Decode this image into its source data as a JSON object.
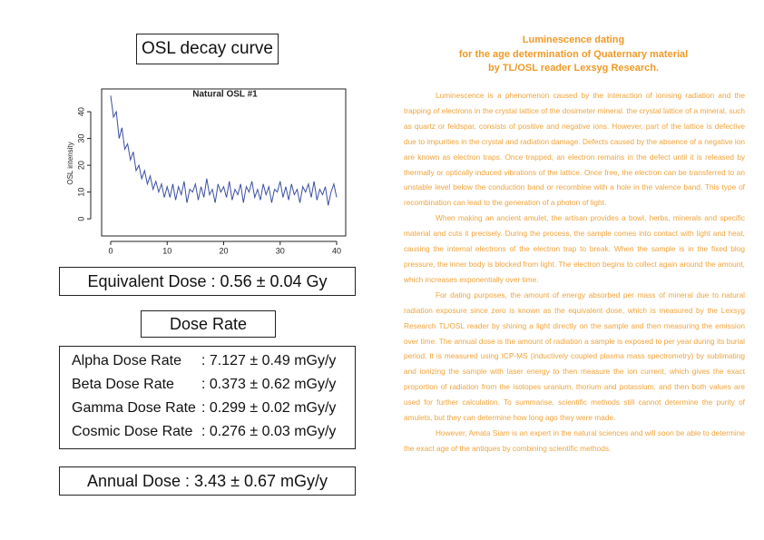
{
  "header": {
    "title": "OSL decay curve"
  },
  "chart": {
    "type": "line",
    "title": "Natural OSL #1",
    "y_label": "OSL intensity",
    "color": "#3b4fa0",
    "xlim": [
      -1.6,
      41.6
    ],
    "ylim": [
      -6.4,
      48.5
    ],
    "xticks": [
      0,
      10,
      20,
      30,
      40
    ],
    "yticks": [
      0,
      10,
      20,
      30,
      40
    ],
    "x": [
      0,
      0.5,
      1,
      1.5,
      2,
      2.5,
      3,
      3.5,
      4,
      4.5,
      5,
      5.5,
      6,
      6.5,
      7,
      7.5,
      8,
      8.5,
      9,
      9.5,
      10,
      10.5,
      11,
      11.5,
      12,
      12.5,
      13,
      13.5,
      14,
      14.5,
      15,
      15.5,
      16,
      16.5,
      17,
      17.5,
      18,
      18.5,
      19,
      19.5,
      20,
      20.5,
      21,
      21.5,
      22,
      22.5,
      23,
      23.5,
      24,
      24.5,
      25,
      25.5,
      26,
      26.5,
      27,
      27.5,
      28,
      28.5,
      29,
      29.5,
      30,
      30.5,
      31,
      31.5,
      32,
      32.5,
      33,
      33.5,
      34,
      34.5,
      35,
      35.5,
      36,
      36.5,
      37,
      37.5,
      38,
      38.5,
      39,
      39.5,
      40
    ],
    "values": [
      46,
      38,
      40,
      30,
      34,
      26,
      28,
      22,
      25,
      18,
      20,
      15,
      18,
      13,
      16,
      11,
      14,
      10,
      13,
      8,
      12,
      8,
      13,
      7,
      12,
      9,
      14,
      6,
      11,
      10,
      13,
      7,
      12,
      8,
      15,
      9,
      11,
      6,
      13,
      10,
      12,
      8,
      14,
      7,
      11,
      9,
      13,
      6,
      12,
      10,
      14,
      8,
      11,
      7,
      13,
      9,
      12,
      6,
      11,
      10,
      14,
      8,
      12,
      7,
      13,
      9,
      11,
      6,
      12,
      10,
      13,
      8,
      14,
      7,
      11,
      9,
      12,
      5,
      10,
      13,
      8
    ]
  },
  "equivalent_dose": "Equivalent Dose : 0.56 ± 0.04 Gy",
  "dose_rate": {
    "title": "Dose Rate",
    "rows": [
      [
        "Alpha Dose Rate",
        ": 7.127 ± 0.49 mGy/y"
      ],
      [
        "Beta Dose Rate",
        ": 0.373 ± 0.62 mGy/y"
      ],
      [
        "Gamma Dose Rate",
        ": 0.299 ± 0.02 mGy/y"
      ],
      [
        "Cosmic Dose Rate",
        ": 0.276 ± 0.03 mGy/y"
      ]
    ]
  },
  "annual_dose": "Annual Dose : 3.43 ± 0.67 mGy/y",
  "article": {
    "title": [
      "Luminescence dating",
      "for the age determination of Quaternary material",
      "by TL/OSL reader Lexsyg Research."
    ],
    "paragraphs": [
      "Luminescence is a phenomenon caused by the interaction of ionising radiation and the trapping of electrons in the crystal lattice of the dosimeter mineral. the crystal lattice of a mineral, such as quartz or feldspar, consists of positive and negative ions. However, part of the lattice is defective due to impurities in the crystal and radiation damage. Defects caused by the absence of a negative ion are known as electron traps. Once trapped, an electron remains in the defect until it is released by thermally or optically induced vibrations of the lattice. Once free, the electron can be transferred to an unstable level below the conduction band or recombine with a hole in the valence band. This type of recombination can lead to the generation of a photon of light.",
      "When making an ancient amulet, the artisan provides a bowl, herbs, minerals and specific material and cuts it precisely. During the process, the sample comes into contact with light and heat, causing the internal electrons of the electron trap to break. When the sample is in the fixed blog pressure, the inner body is blocked from light. The electron begins to collect again around the amount, which increases exponentially over time.",
      "For dating purposes, the amount of energy absorbed per mass of mineral due to natural radiation exposure since zero is known as the equivalent dose, which is measured by the Lexsyg Research TL/OSL reader by shining a light directly on the sample and then measuring the emission over time. The annual dose is the amount of radiation a sample is exposed to per year during its burial period. It is measured using ICP-MS (inductively coupled plasma mass spectrometry) by sublimating and ionizing the sample with laser energy to then measure the ion current, which gives the exact proportion of radiation from the isotopes uranium, thorium and potassium, and then both values are used for further calculation. To summarise, scientific methods still cannot determine the purity of amulets, but they can determine how long ago they were made.",
      "However, Amata Siam is an expert in the natural sciences and will soon be able to determine the exact age of the antiques by combining scientific methods."
    ]
  }
}
